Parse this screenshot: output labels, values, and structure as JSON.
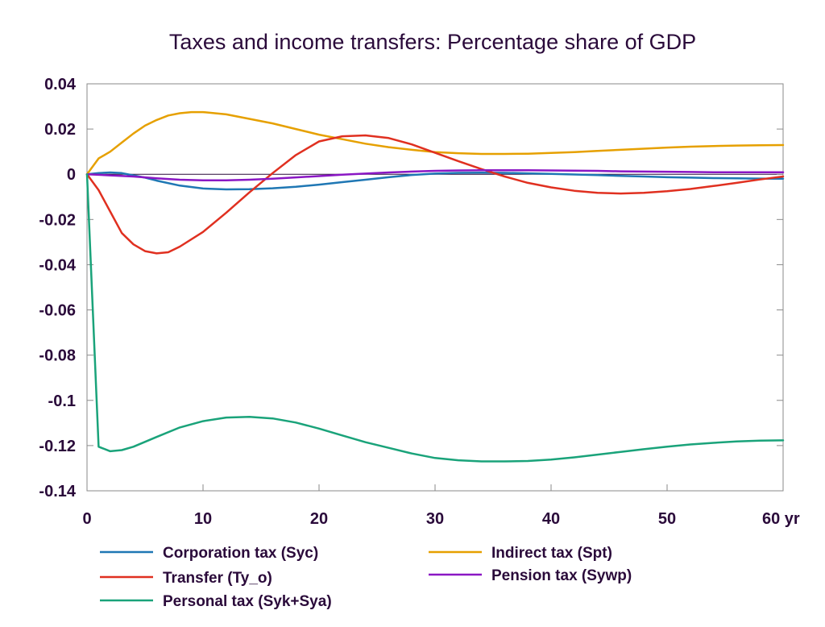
{
  "chart_data": {
    "type": "line",
    "title": "Taxes and income transfers: Percentage share of GDP",
    "x_unit_label": "yr",
    "xlim": [
      0,
      60
    ],
    "ylim": [
      -0.14,
      0.04
    ],
    "x_ticks": [
      0,
      10,
      20,
      30,
      40,
      50,
      60
    ],
    "x_tick_labels": [
      "0",
      "10",
      "20",
      "30",
      "40",
      "50",
      "60 yr"
    ],
    "y_ticks": [
      0.04,
      0.02,
      0,
      -0.02,
      -0.04,
      -0.06,
      -0.08,
      -0.1,
      -0.12,
      -0.14
    ],
    "y_tick_labels": [
      "0.04",
      "0.02",
      "0",
      "-0.02",
      "-0.04",
      "-0.06",
      "-0.08",
      "-0.1",
      "-0.12",
      "-0.14"
    ],
    "grid": false,
    "legend_position": "bottom",
    "series": [
      {
        "name": "Corporation tax (Syc)",
        "color": "#1f77b4",
        "x": [
          0,
          1,
          2,
          3,
          4,
          5,
          6,
          8,
          10,
          12,
          14,
          16,
          18,
          20,
          22,
          24,
          26,
          28,
          30,
          32,
          34,
          36,
          38,
          40,
          42,
          44,
          46,
          48,
          50,
          52,
          54,
          56,
          58,
          60
        ],
        "y": [
          0,
          0.0005,
          0.0008,
          0.0005,
          -0.0005,
          -0.0015,
          -0.0028,
          -0.005,
          -0.0063,
          -0.0067,
          -0.0066,
          -0.0062,
          -0.0055,
          -0.0046,
          -0.0035,
          -0.0024,
          -0.0013,
          -0.0003,
          0.0003,
          0.0006,
          0.0007,
          0.0006,
          0.0004,
          0.0002,
          -0.0001,
          -0.0004,
          -0.0007,
          -0.001,
          -0.0013,
          -0.0015,
          -0.0017,
          -0.0018,
          -0.0019,
          -0.002
        ]
      },
      {
        "name": "Indirect tax (Spt)",
        "color": "#e6a000",
        "x": [
          0,
          1,
          2,
          3,
          4,
          5,
          6,
          7,
          8,
          9,
          10,
          12,
          14,
          16,
          18,
          20,
          22,
          24,
          26,
          28,
          30,
          32,
          34,
          36,
          38,
          40,
          42,
          44,
          46,
          48,
          50,
          52,
          54,
          56,
          58,
          60
        ],
        "y": [
          0,
          0.007,
          0.01,
          0.014,
          0.018,
          0.0215,
          0.024,
          0.026,
          0.027,
          0.0275,
          0.0275,
          0.0265,
          0.0245,
          0.0225,
          0.02,
          0.0175,
          0.0155,
          0.0135,
          0.012,
          0.0108,
          0.0098,
          0.0093,
          0.009,
          0.009,
          0.0091,
          0.0094,
          0.0098,
          0.0103,
          0.0108,
          0.0113,
          0.0118,
          0.0122,
          0.0125,
          0.0127,
          0.0128,
          0.0129
        ]
      },
      {
        "name": "Transfer (Ty_o)",
        "color": "#e03020",
        "x": [
          0,
          1,
          2,
          3,
          4,
          5,
          6,
          7,
          8,
          10,
          12,
          14,
          16,
          18,
          20,
          22,
          24,
          26,
          28,
          30,
          32,
          34,
          36,
          38,
          40,
          42,
          44,
          46,
          48,
          50,
          52,
          54,
          56,
          58,
          60
        ],
        "y": [
          0,
          -0.007,
          -0.0165,
          -0.026,
          -0.031,
          -0.034,
          -0.035,
          -0.0345,
          -0.032,
          -0.0255,
          -0.017,
          -0.008,
          0.0005,
          0.0085,
          0.0145,
          0.0168,
          0.0172,
          0.016,
          0.0132,
          0.0095,
          0.0058,
          0.0023,
          -0.001,
          -0.0038,
          -0.0058,
          -0.0073,
          -0.0082,
          -0.0085,
          -0.0082,
          -0.0075,
          -0.0065,
          -0.0052,
          -0.0038,
          -0.0023,
          -0.001
        ]
      },
      {
        "name": "Pension tax (Sywp)",
        "color": "#8a17c4",
        "x": [
          0,
          2,
          4,
          6,
          8,
          10,
          12,
          14,
          16,
          18,
          20,
          22,
          24,
          26,
          28,
          30,
          32,
          34,
          36,
          38,
          40,
          42,
          44,
          46,
          48,
          50,
          52,
          54,
          56,
          58,
          60
        ],
        "y": [
          0,
          -0.0005,
          -0.001,
          -0.0018,
          -0.0024,
          -0.0027,
          -0.0027,
          -0.0024,
          -0.002,
          -0.0014,
          -0.0008,
          -0.0002,
          0.0003,
          0.0008,
          0.0012,
          0.0015,
          0.0017,
          0.0018,
          0.0018,
          0.0018,
          0.0017,
          0.0016,
          0.0015,
          0.0013,
          0.0012,
          0.0011,
          0.001,
          0.0009,
          0.0009,
          0.0009,
          0.0009
        ]
      },
      {
        "name": "Personal tax (Syk+Sya)",
        "color": "#1aa37a",
        "x": [
          0,
          1,
          2,
          3,
          4,
          6,
          8,
          10,
          12,
          14,
          16,
          18,
          20,
          22,
          24,
          26,
          28,
          30,
          32,
          34,
          36,
          38,
          40,
          42,
          44,
          46,
          48,
          50,
          52,
          54,
          56,
          58,
          60
        ],
        "y": [
          0,
          -0.1205,
          -0.1225,
          -0.122,
          -0.1205,
          -0.1162,
          -0.112,
          -0.1092,
          -0.1076,
          -0.1073,
          -0.108,
          -0.1098,
          -0.1125,
          -0.1155,
          -0.1185,
          -0.121,
          -0.1235,
          -0.1255,
          -0.1265,
          -0.127,
          -0.127,
          -0.1268,
          -0.1262,
          -0.1252,
          -0.124,
          -0.1228,
          -0.1216,
          -0.1205,
          -0.1195,
          -0.1188,
          -0.1182,
          -0.1178,
          -0.1177
        ]
      }
    ]
  }
}
